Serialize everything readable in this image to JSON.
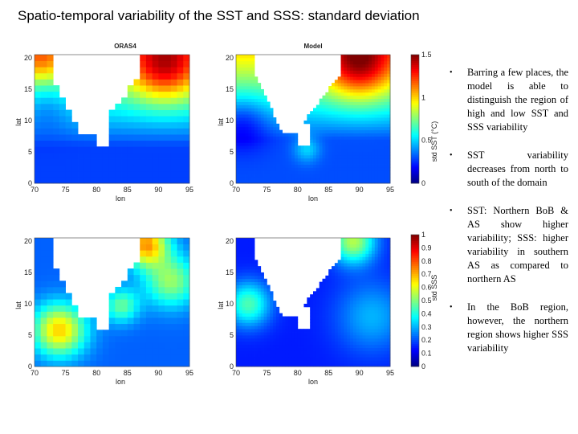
{
  "title": "Spatio-temporal variability of the SST and SSS: standard deviation",
  "panels": {
    "sst_oras4": {
      "title": "ORAS4",
      "xlabel": "lon",
      "ylabel": "lat"
    },
    "sst_model": {
      "title": "Model",
      "xlabel": "lon",
      "ylabel": "lat"
    },
    "sss_oras4": {
      "title": "",
      "xlabel": "lon",
      "ylabel": "lat"
    },
    "sss_model": {
      "title": "",
      "xlabel": "lon",
      "ylabel": "lat"
    }
  },
  "colorbars": {
    "sst": {
      "label": "std SST (°C)",
      "ticks": [
        "0",
        "0.5",
        "1",
        "1.5"
      ]
    },
    "sss": {
      "label": "std SSS",
      "ticks": [
        "0",
        "0.1",
        "0.2",
        "0.3",
        "0.4",
        "0.5",
        "0.6",
        "0.7",
        "0.8",
        "0.9",
        "1"
      ]
    }
  },
  "axes": {
    "x_ticks": [
      "70",
      "75",
      "80",
      "85",
      "90",
      "95"
    ],
    "y_ticks": [
      "0",
      "5",
      "10",
      "15",
      "20"
    ]
  },
  "bullets": [
    "Barring a few places, the model is able to distinguish the region of high and low SST and SSS variability",
    "SST variability decreases from north to south of the domain",
    "SST: Northern BoB & AS show higher variability; SSS: higher variability in southern AS as compared to northern AS",
    "In the BoB region, however, the northern region shows higher SSS variability"
  ],
  "chart_data": [
    {
      "type": "heatmap",
      "name": "SST ORAS4",
      "x_range": [
        70,
        95
      ],
      "y_range": [
        0,
        20.5
      ],
      "colorbar_range": [
        0,
        1.5
      ]
    },
    {
      "type": "heatmap",
      "name": "SST Model",
      "x_range": [
        70,
        95
      ],
      "y_range": [
        0,
        20.5
      ],
      "colorbar_range": [
        0,
        1.5
      ]
    },
    {
      "type": "heatmap",
      "name": "SSS ORAS4",
      "x_range": [
        70,
        95
      ],
      "y_range": [
        0,
        20.5
      ],
      "colorbar_range": [
        0,
        1
      ]
    },
    {
      "type": "heatmap",
      "name": "SSS Model",
      "x_range": [
        70,
        95
      ],
      "y_range": [
        0,
        20.5
      ],
      "colorbar_range": [
        0,
        1
      ]
    }
  ]
}
